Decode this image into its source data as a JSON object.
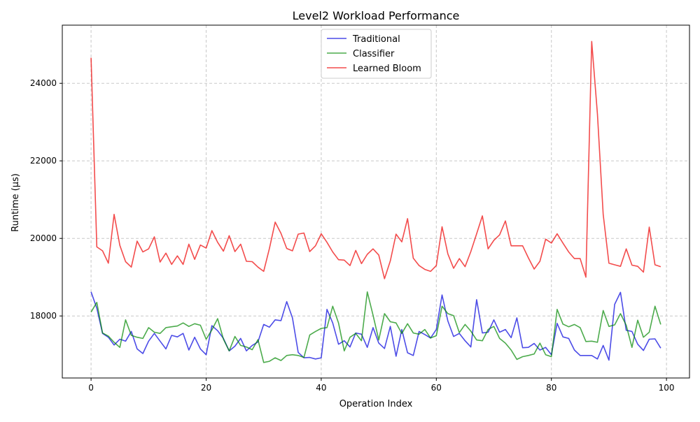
{
  "chart_data": {
    "type": "line",
    "title": "Level2 Workload Performance",
    "xlabel": "Operation Index",
    "ylabel": "Runtime (µs)",
    "xlim": [
      -5,
      104
    ],
    "ylim": [
      16400,
      25500
    ],
    "xticks": [
      0,
      20,
      40,
      60,
      80,
      100
    ],
    "yticks": [
      18000,
      20000,
      22000,
      24000
    ],
    "grid": true,
    "legend_position": "top-center",
    "x": [
      0,
      1,
      2,
      3,
      4,
      5,
      6,
      7,
      8,
      9,
      10,
      11,
      12,
      13,
      14,
      15,
      16,
      17,
      18,
      19,
      20,
      21,
      22,
      23,
      24,
      25,
      26,
      27,
      28,
      29,
      30,
      31,
      32,
      33,
      34,
      35,
      36,
      37,
      38,
      39,
      40,
      41,
      42,
      43,
      44,
      45,
      46,
      47,
      48,
      49,
      50,
      51,
      52,
      53,
      54,
      55,
      56,
      57,
      58,
      59,
      60,
      61,
      62,
      63,
      64,
      65,
      66,
      67,
      68,
      69,
      70,
      71,
      72,
      73,
      74,
      75,
      76,
      77,
      78,
      79,
      80,
      81,
      82,
      83,
      84,
      85,
      86,
      87,
      88,
      89,
      90,
      91,
      92,
      93,
      94,
      95,
      96,
      97,
      98,
      99
    ],
    "series": [
      {
        "name": "Traditional",
        "color": "#0000dd",
        "values": [
          18620,
          18200,
          17550,
          17450,
          17250,
          17400,
          17350,
          17600,
          17150,
          17030,
          17350,
          17550,
          17350,
          17150,
          17500,
          17460,
          17550,
          17120,
          17450,
          17150,
          17000,
          17750,
          17620,
          17420,
          17100,
          17220,
          17420,
          17100,
          17240,
          17330,
          17780,
          17710,
          17900,
          17880,
          18370,
          17950,
          17060,
          16920,
          16930,
          16890,
          16920,
          18170,
          17820,
          17270,
          17360,
          17200,
          17560,
          17530,
          17190,
          17700,
          17300,
          17160,
          17730,
          16960,
          17650,
          17050,
          16980,
          17600,
          17520,
          17430,
          17650,
          18540,
          17870,
          17470,
          17550,
          17360,
          17200,
          18420,
          17560,
          17580,
          17900,
          17580,
          17650,
          17440,
          17950,
          17180,
          17190,
          17290,
          17120,
          17190,
          17000,
          17810,
          17460,
          17420,
          17120,
          16980,
          16980,
          16980,
          16890,
          17240,
          16860,
          18300,
          18610,
          17630,
          17600,
          17270,
          17110,
          17400,
          17410,
          17170
        ]
      },
      {
        "name": "Classifier",
        "color": "#008800",
        "values": [
          18100,
          18350,
          17560,
          17480,
          17320,
          17190,
          17900,
          17500,
          17450,
          17420,
          17700,
          17580,
          17550,
          17700,
          17720,
          17740,
          17820,
          17730,
          17800,
          17760,
          17400,
          17640,
          17930,
          17400,
          17100,
          17470,
          17240,
          17200,
          17130,
          17390,
          16800,
          16830,
          16920,
          16850,
          16980,
          17000,
          16980,
          16930,
          17510,
          17600,
          17680,
          17700,
          18250,
          17820,
          17100,
          17450,
          17550,
          17360,
          18620,
          18020,
          17380,
          18060,
          17850,
          17820,
          17550,
          17800,
          17560,
          17530,
          17650,
          17430,
          17490,
          18250,
          18060,
          18010,
          17570,
          17780,
          17610,
          17380,
          17360,
          17650,
          17730,
          17420,
          17300,
          17120,
          16880,
          16950,
          16980,
          17020,
          17300,
          17000,
          16950,
          18170,
          17790,
          17720,
          17780,
          17700,
          17340,
          17350,
          17320,
          18140,
          17730,
          17770,
          18060,
          17760,
          17190,
          17890,
          17450,
          17580,
          18250,
          17780
        ]
      },
      {
        "name": "Learned Bloom",
        "color": "#ee0000",
        "values": [
          24660,
          19780,
          19680,
          19360,
          20620,
          19820,
          19400,
          19260,
          19930,
          19650,
          19730,
          20040,
          19390,
          19620,
          19330,
          19550,
          19330,
          19850,
          19460,
          19830,
          19750,
          20200,
          19900,
          19670,
          20070,
          19660,
          19850,
          19410,
          19400,
          19260,
          19150,
          19740,
          20420,
          20130,
          19740,
          19680,
          20110,
          20140,
          19660,
          19810,
          20120,
          19900,
          19650,
          19450,
          19440,
          19300,
          19690,
          19350,
          19590,
          19730,
          19570,
          18960,
          19420,
          20110,
          19910,
          20510,
          19490,
          19300,
          19200,
          19150,
          19300,
          20300,
          19600,
          19230,
          19480,
          19270,
          19660,
          20120,
          20580,
          19730,
          19950,
          20090,
          20450,
          19810,
          19810,
          19810,
          19500,
          19210,
          19410,
          19980,
          19880,
          20120,
          19880,
          19650,
          19480,
          19480,
          19000,
          25080,
          23200,
          20620,
          19360,
          19320,
          19280,
          19730,
          19310,
          19280,
          19130,
          20290,
          19320,
          19270
        ]
      }
    ]
  }
}
